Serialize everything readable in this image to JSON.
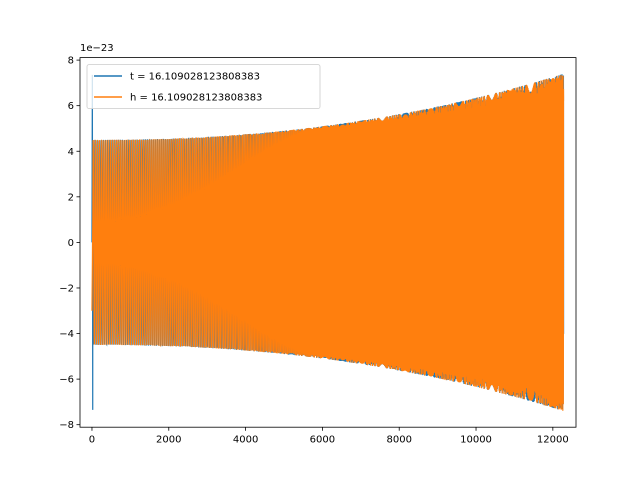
{
  "chart_data": {
    "type": "line",
    "offset_label": "1e−23",
    "x_range": [
      -311.5,
      12603.0
    ],
    "y_range": [
      -8.11,
      8.11
    ],
    "x_ticks": [
      0,
      2000,
      4000,
      6000,
      8000,
      10000,
      12000
    ],
    "x_tick_labels": [
      "0",
      "2000",
      "4000",
      "6000",
      "8000",
      "10000",
      "12000"
    ],
    "y_ticks": [
      -8,
      -6,
      -4,
      -2,
      0,
      2,
      4,
      6,
      8
    ],
    "y_tick_labels": [
      "−8",
      "−6",
      "−4",
      "−2",
      "0",
      "2",
      "4",
      "6",
      "8"
    ],
    "grid": false,
    "legend_position": "top-left",
    "series": [
      {
        "name": "t = 16.109028123808383",
        "color": "#1f77b4",
        "x_start": 0,
        "x_end": 12280,
        "initial_spike": 7.35,
        "envelope_start": 4.5,
        "envelope_end": 7.4
      },
      {
        "name": "h = 16.109028123808383",
        "color": "#ff7f0e",
        "x_start": 0,
        "x_end": 12280,
        "envelope_start": 4.5,
        "envelope_end": 7.4
      }
    ]
  }
}
